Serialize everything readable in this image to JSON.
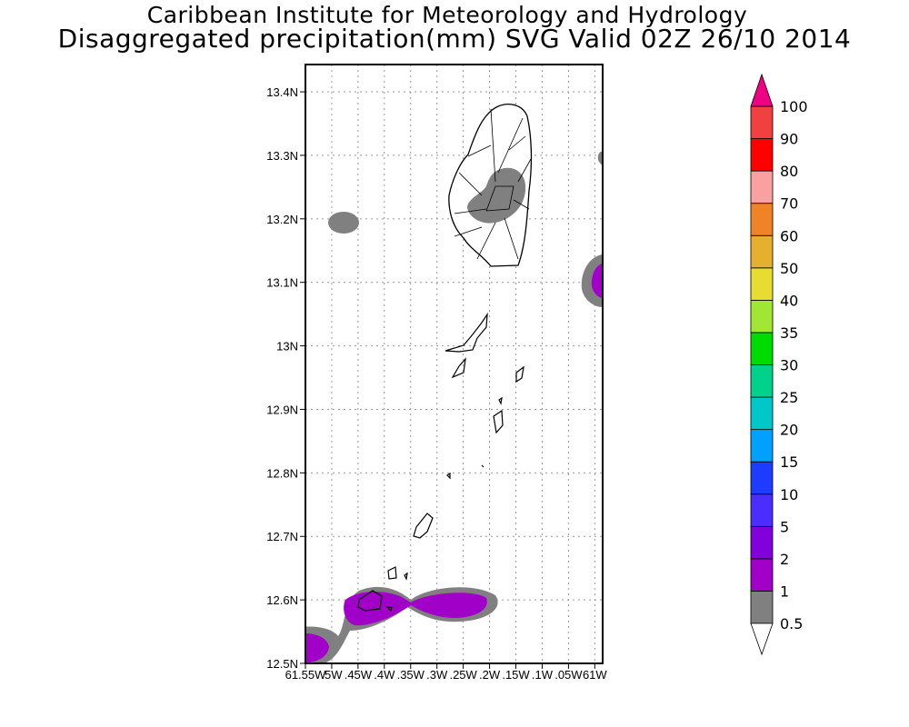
{
  "header": {
    "title_line1": "Caribbean Institute for Meteorology and Hydrology",
    "title_line2": "Disaggregated precipitation(mm) SVG Valid 02Z 26/10 2014"
  },
  "map": {
    "lat_range": [
      12.5,
      13.443
    ],
    "lon_range_west": [
      61.55,
      60.985
    ],
    "y_ticks": [
      {
        "value": 12.5,
        "label": "12.5N"
      },
      {
        "value": 12.6,
        "label": "12.6N"
      },
      {
        "value": 12.7,
        "label": "12.7N"
      },
      {
        "value": 12.8,
        "label": "12.8N"
      },
      {
        "value": 12.9,
        "label": "12.9N"
      },
      {
        "value": 13.0,
        "label": "13N"
      },
      {
        "value": 13.1,
        "label": "13.1N"
      },
      {
        "value": 13.2,
        "label": "13.2N"
      },
      {
        "value": 13.3,
        "label": "13.3N"
      },
      {
        "value": 13.4,
        "label": "13.4N"
      }
    ],
    "x_ticks": [
      {
        "value": 61.55,
        "label": "61.55W"
      },
      {
        "value": 61.5,
        "label": ".5W"
      },
      {
        "value": 61.45,
        "label": ".45W"
      },
      {
        "value": 61.4,
        "label": ".4W"
      },
      {
        "value": 61.35,
        "label": ".35W"
      },
      {
        "value": 61.3,
        "label": ".3W"
      },
      {
        "value": 61.25,
        "label": ".25W"
      },
      {
        "value": 61.2,
        "label": ".2W"
      },
      {
        "value": 61.15,
        "label": ".15W"
      },
      {
        "value": 61.1,
        "label": ".1W"
      },
      {
        "value": 61.05,
        "label": ".05W"
      },
      {
        "value": 61.0,
        "label": "61W"
      }
    ]
  },
  "colorbar": {
    "levels": [
      "0.5",
      "1",
      "2",
      "5",
      "10",
      "15",
      "20",
      "25",
      "30",
      "35",
      "40",
      "50",
      "60",
      "70",
      "80",
      "90",
      "100"
    ],
    "colors": [
      "#808080",
      "#a000c8",
      "#8200dc",
      "#4b2dff",
      "#1e3cff",
      "#00a0ff",
      "#00c8c8",
      "#00d28c",
      "#00dc00",
      "#a0e632",
      "#e6dc32",
      "#e6af2d",
      "#f08228",
      "#faa0a0",
      "#ff0000",
      "#f04040"
    ],
    "under_color": "#ffffff",
    "over_color": "#f00082"
  }
}
